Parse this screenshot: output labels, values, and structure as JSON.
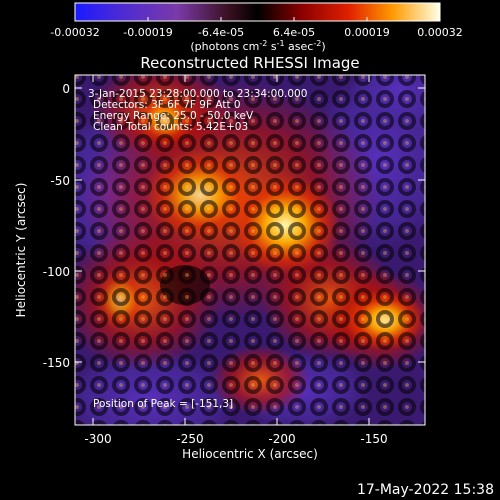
{
  "colorbar": {
    "tick_labels": [
      "-0.00032",
      "-0.00019",
      "-6.4e-05",
      "6.4e-05",
      "0.00019",
      "0.00032"
    ],
    "unit_label": "(photons cm",
    "unit_exp1": "-2",
    "unit_mid": " s",
    "unit_exp2": "-1",
    "unit_end": " asec",
    "unit_exp3": "-2",
    "unit_close": ")"
  },
  "title": "Reconstructed RHESSI Image",
  "annotations": {
    "time_range": "3-Jan-2015 23:28:00.000 to 23:34:00.000",
    "detectors": "Detectors: 3F 6F 7F 9F  Att 0",
    "energy": "Energy Range: 25.0 - 50.0 keV",
    "clean": "Clean    Total counts: 5.42E+03",
    "peak": "Position of Peak = [-151,3]"
  },
  "x_axis": {
    "label": "Heliocentric X (arcsec)",
    "tick_labels": [
      "-300",
      "-250",
      "-200",
      "-150"
    ]
  },
  "y_axis": {
    "label": "Heliocentric Y (arcsec)",
    "tick_labels": [
      "0",
      "-50",
      "-100",
      "-150"
    ]
  },
  "footer": {
    "timestamp": "17-May-2022 15:38"
  }
}
